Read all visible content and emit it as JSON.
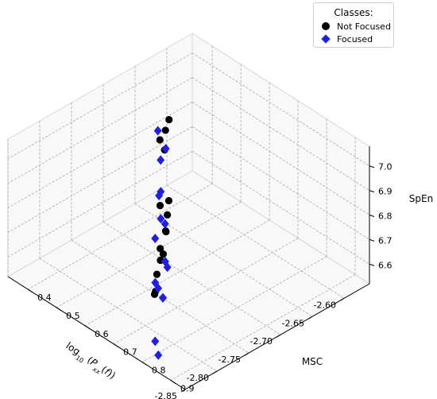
{
  "chart_data": {
    "type": "scatter3d",
    "title": "",
    "xlabel": "log10 (Pxx(f))",
    "ylabel": "MSC",
    "zlabel": "SpEn",
    "xlim": [
      -2.85,
      -2.56
    ],
    "ylim": [
      0.33,
      0.95
    ],
    "zlim": [
      6.52,
      7.08
    ],
    "x_ticks": [
      "-2.85",
      "-2.80",
      "-2.75",
      "-2.70",
      "-2.65",
      "-2.60"
    ],
    "y_ticks": [
      "0.9",
      "0.8",
      "0.7",
      "0.6",
      "0.5",
      "0.4"
    ],
    "z_ticks": [
      "6.6",
      "6.7",
      "6.8",
      "6.9",
      "7.0"
    ],
    "grid": true,
    "legend": {
      "title": "Classes:",
      "placement": "top-right"
    },
    "series": [
      {
        "name": "Not Focused",
        "color": "#000000",
        "marker": "circle",
        "points": [
          {
            "x": -2.677,
            "y": 0.477,
            "z": 6.929
          },
          {
            "x": -2.644,
            "y": 0.423,
            "z": 6.879
          },
          {
            "x": -2.633,
            "y": 0.411,
            "z": 6.897
          },
          {
            "x": -2.653,
            "y": 0.44,
            "z": 6.825
          },
          {
            "x": -2.723,
            "y": 0.58,
            "z": 6.806
          },
          {
            "x": -2.717,
            "y": 0.592,
            "z": 6.768
          },
          {
            "x": -2.69,
            "y": 0.537,
            "z": 6.745
          },
          {
            "x": -2.776,
            "y": 0.699,
            "z": 6.75
          },
          {
            "x": -2.74,
            "y": 0.637,
            "z": 6.77
          },
          {
            "x": -2.755,
            "y": 0.662,
            "z": 6.717
          },
          {
            "x": -2.778,
            "y": 0.691,
            "z": 6.69
          },
          {
            "x": -2.707,
            "y": 0.565,
            "z": 6.665
          },
          {
            "x": -2.721,
            "y": 0.576,
            "z": 6.625
          },
          {
            "x": -2.777,
            "y": 0.684,
            "z": 6.614
          },
          {
            "x": -2.743,
            "y": 0.605,
            "z": 6.493
          }
        ]
      },
      {
        "name": "Focused",
        "color": "#1f1fe6",
        "marker": "diamond",
        "points": [
          {
            "x": -2.7,
            "y": 0.521,
            "z": 7.033
          },
          {
            "x": -2.71,
            "y": 0.553,
            "z": 6.952
          },
          {
            "x": -2.688,
            "y": 0.522,
            "z": 6.943
          },
          {
            "x": -2.735,
            "y": 0.609,
            "z": 6.902
          },
          {
            "x": -2.748,
            "y": 0.653,
            "z": 6.823
          },
          {
            "x": -2.731,
            "y": 0.594,
            "z": 6.869
          },
          {
            "x": -2.735,
            "y": 0.609,
            "z": 6.792
          },
          {
            "x": -2.787,
            "y": 0.705,
            "z": 6.86
          },
          {
            "x": -2.773,
            "y": 0.709,
            "z": 6.748
          },
          {
            "x": -2.77,
            "y": 0.71,
            "z": 6.721
          },
          {
            "x": -2.808,
            "y": 0.752,
            "z": 6.746
          },
          {
            "x": -2.789,
            "y": 0.72,
            "z": 6.671
          },
          {
            "x": -2.791,
            "y": 0.741,
            "z": 6.65
          },
          {
            "x": -2.773,
            "y": 0.701,
            "z": 6.595
          },
          {
            "x": -2.831,
            "y": 0.803,
            "z": 6.579
          },
          {
            "x": -2.836,
            "y": 0.825,
            "z": 6.546
          }
        ]
      }
    ]
  }
}
